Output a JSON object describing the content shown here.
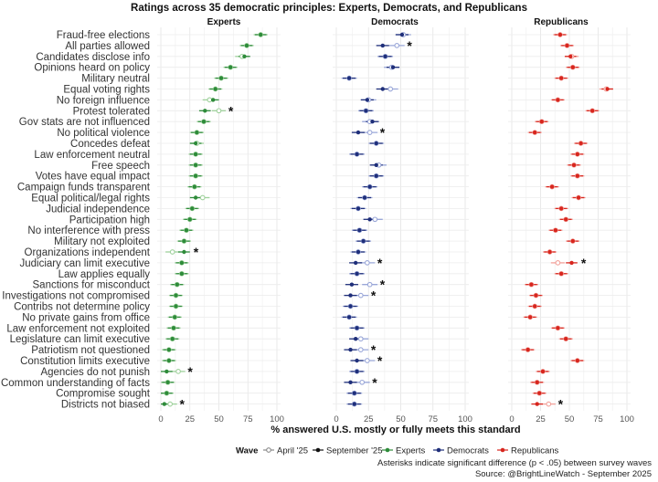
{
  "chart_data": {
    "type": "dot-range",
    "title": "Ratings across 35 democratic principles: Experts, Democrats, and Republicans",
    "xlabel": "% answered U.S. mostly or fully meets this standard",
    "xlim": [
      0,
      100
    ],
    "xticks": [
      "0",
      "25",
      "50",
      "75",
      "100"
    ],
    "panels": [
      {
        "key": "experts",
        "name": "Experts",
        "color": "#2e8b3a",
        "light": "#9fd19c"
      },
      {
        "key": "democrats",
        "name": "Democrats",
        "color": "#1f2f7a",
        "light": "#9aa7d8"
      },
      {
        "key": "republicans",
        "name": "Republicans",
        "color": "#d7261e",
        "light": "#f2a19a"
      }
    ],
    "legend": {
      "title": "Wave",
      "waves": [
        "April '25",
        "September '25"
      ],
      "groups": [
        "Experts",
        "Democrats",
        "Republicans"
      ]
    },
    "notes": [
      "Asterisks indicate significant difference (p < .05) between survey waves",
      "Source: @BrightLineWatch - September 2025"
    ],
    "star_symbol": "*",
    "principles": [
      {
        "label": "Fraud-free elections",
        "e": [
          86,
          86
        ],
        "d": [
          52,
          51
        ],
        "r": [
          42,
          42
        ]
      },
      {
        "label": "All parties allowed",
        "e": [
          74,
          74
        ],
        "d": [
          47,
          36,
          true
        ],
        "r": [
          48,
          48
        ]
      },
      {
        "label": "Candidates disclose info",
        "e": [
          70,
          72
        ],
        "d": [
          38,
          38
        ],
        "r": [
          52,
          51
        ]
      },
      {
        "label": "Opinions heard on policy",
        "e": [
          60,
          60
        ],
        "d": [
          43,
          44
        ],
        "r": [
          53,
          53
        ]
      },
      {
        "label": "Military neutral",
        "e": [
          52,
          52
        ],
        "d": [
          10,
          10
        ],
        "r": [
          43,
          43
        ]
      },
      {
        "label": "Equal voting rights",
        "e": [
          47,
          47
        ],
        "d": [
          42,
          36
        ],
        "r": [
          82,
          83
        ]
      },
      {
        "label": "No foreign influence",
        "e": [
          42,
          45
        ],
        "d": [
          25,
          24
        ],
        "r": [
          40,
          40
        ]
      },
      {
        "label": "Protest tolerated",
        "e": [
          50,
          38,
          true
        ],
        "d": [
          23,
          23
        ],
        "r": [
          70,
          70
        ]
      },
      {
        "label": "Gov stats are not influenced",
        "e": [
          37,
          37
        ],
        "d": [
          26,
          28
        ],
        "r": [
          26,
          26
        ]
      },
      {
        "label": "No political violence",
        "e": [
          31,
          31
        ],
        "d": [
          26,
          17,
          true
        ],
        "r": [
          20,
          20
        ]
      },
      {
        "label": "Concedes defeat",
        "e": [
          31,
          30
        ],
        "d": [
          31,
          31
        ],
        "r": [
          60,
          60
        ]
      },
      {
        "label": "Law enforcement neutral",
        "e": [
          30,
          30
        ],
        "d": [
          16,
          16
        ],
        "r": [
          57,
          57
        ]
      },
      {
        "label": "Free speech",
        "e": [
          30,
          30
        ],
        "d": [
          33,
          31
        ],
        "r": [
          54,
          54
        ]
      },
      {
        "label": "Votes have equal impact",
        "e": [
          30,
          30
        ],
        "d": [
          31,
          31
        ],
        "r": [
          57,
          57
        ]
      },
      {
        "label": "Campaign funds transparent",
        "e": [
          29,
          29
        ],
        "d": [
          26,
          26
        ],
        "r": [
          35,
          35
        ]
      },
      {
        "label": "Equal political/legal rights",
        "e": [
          36,
          30
        ],
        "d": [
          22,
          22
        ],
        "r": [
          58,
          58
        ]
      },
      {
        "label": "Judicial independence",
        "e": [
          27,
          27
        ],
        "d": [
          17,
          17
        ],
        "r": [
          43,
          43
        ]
      },
      {
        "label": "Participation high",
        "e": [
          25,
          25
        ],
        "d": [
          30,
          26
        ],
        "r": [
          47,
          47
        ]
      },
      {
        "label": "No interference with press",
        "e": [
          22,
          22
        ],
        "d": [
          18,
          18
        ],
        "r": [
          38,
          38
        ]
      },
      {
        "label": "Military not exploited",
        "e": [
          20,
          20
        ],
        "d": [
          21,
          21
        ],
        "r": [
          53,
          53
        ]
      },
      {
        "label": "Organizations independent",
        "e": [
          10,
          20,
          true
        ],
        "d": [
          17,
          17
        ],
        "r": [
          33,
          33
        ]
      },
      {
        "label": "Judiciary can limit executive",
        "e": [
          18,
          18
        ],
        "d": [
          24,
          15,
          true
        ],
        "r": [
          40,
          52,
          true
        ]
      },
      {
        "label": "Law applies equally",
        "e": [
          18,
          18
        ],
        "d": [
          16,
          16
        ],
        "r": [
          43,
          43
        ]
      },
      {
        "label": "Sanctions for misconduct",
        "e": [
          14,
          14
        ],
        "d": [
          26,
          12,
          true
        ],
        "r": [
          17,
          17
        ]
      },
      {
        "label": "Investigations not compromised",
        "e": [
          13,
          13
        ],
        "d": [
          19,
          11,
          true
        ],
        "r": [
          21,
          21
        ]
      },
      {
        "label": "Contribs not determine policy",
        "e": [
          13,
          13
        ],
        "d": [
          11,
          11
        ],
        "r": [
          20,
          20
        ]
      },
      {
        "label": "No private gains from office",
        "e": [
          12,
          12
        ],
        "d": [
          10,
          10
        ],
        "r": [
          16,
          16
        ]
      },
      {
        "label": "Law enforcement not exploited",
        "e": [
          11,
          11
        ],
        "d": [
          16,
          16
        ],
        "r": [
          40,
          40
        ]
      },
      {
        "label": "Legislature can limit executive",
        "e": [
          10,
          10
        ],
        "d": [
          19,
          15
        ],
        "r": [
          47,
          47
        ]
      },
      {
        "label": "Patriotism not questioned",
        "e": [
          7,
          7
        ],
        "d": [
          19,
          11,
          true
        ],
        "r": [
          14,
          14
        ]
      },
      {
        "label": "Constitution limits executive",
        "e": [
          7,
          7
        ],
        "d": [
          24,
          16,
          true
        ],
        "r": [
          57,
          57
        ]
      },
      {
        "label": "Agencies do not punish",
        "e": [
          15,
          5,
          true
        ],
        "d": [
          16,
          16
        ],
        "r": [
          27,
          27
        ]
      },
      {
        "label": "Common understanding of facts",
        "e": [
          6,
          6
        ],
        "d": [
          20,
          11,
          true
        ],
        "r": [
          22,
          22
        ]
      },
      {
        "label": "Compromise sought",
        "e": [
          5,
          5
        ],
        "d": [
          14,
          14
        ],
        "r": [
          24,
          24
        ]
      },
      {
        "label": "Districts not biased",
        "e": [
          8,
          3,
          true
        ],
        "d": [
          14,
          14
        ],
        "r": [
          32,
          22,
          true
        ]
      }
    ]
  }
}
